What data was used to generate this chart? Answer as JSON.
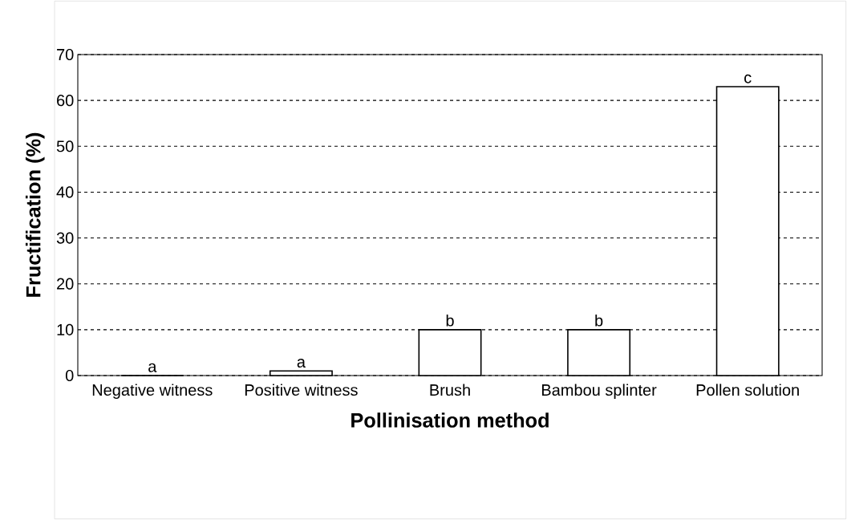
{
  "chart_data": {
    "type": "bar",
    "xlabel": "Pollinisation method",
    "ylabel": "Fructification (%)",
    "categories": [
      "Negative witness",
      "Positive witness",
      "Brush",
      "Bambou splinter",
      "Pollen solution"
    ],
    "values": [
      0,
      1,
      10,
      10,
      63
    ],
    "color": "#000000",
    "ylim": [
      0,
      70
    ],
    "yticks": [
      0,
      10,
      20,
      30,
      40,
      50,
      60,
      70
    ],
    "grid": "y",
    "annotations": [
      {
        "text": "a",
        "x": "Negative witness",
        "y": 0
      },
      {
        "text": "a",
        "x": "Positive witness",
        "y": 1
      },
      {
        "text": "b",
        "x": "Brush",
        "y": 10
      },
      {
        "text": "b",
        "x": "Bambou splinter",
        "y": 10
      },
      {
        "text": "c",
        "x": "Pollen solution",
        "y": 63
      }
    ]
  }
}
